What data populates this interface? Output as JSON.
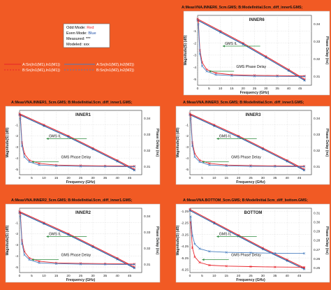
{
  "colors": {
    "background": "#f15a24",
    "odd_mode": "#e8232a",
    "even_mode": "#1f4fa8",
    "il_line": "#1d5aa3",
    "delay_line": "#4a7fc0",
    "annotation": "#2e8b3e"
  },
  "legend_box": {
    "odd": {
      "label": "Odd Mode:",
      "value": "Red"
    },
    "even": {
      "label": "Even Mode:",
      "value": "Blue"
    },
    "measured": {
      "label": "Measured:",
      "value": "***"
    },
    "modeled": {
      "label": "Modeled:",
      "value": "xxx"
    }
  },
  "trace_legend": {
    "a_odd": "A:Sn(In1(M1),In1(M1))",
    "b_odd": "B:Sn(In1(M1),In1(M1))",
    "a_even": "A:Sn(In1(M2),In2(M2))",
    "b_even": "B:Sn(In1(M2),In2(M2))"
  },
  "chart_data": [
    {
      "type": "line",
      "title": "A:MeasVNA.INNER6_5cm.GMS; B:ModelInitial.5cm_diff_inner6.GMS;",
      "inner_label": "INNER6",
      "xlabel": "Frequency (GHz)",
      "ylabel": "Magnitude(S) (dB)",
      "y2label": "Phase Delay (ns)",
      "xlim": [
        0,
        50
      ],
      "ylim": [
        -5.5,
        0.3
      ],
      "y2lim": [
        0.305,
        0.345
      ],
      "xticks": [
        "0",
        "5",
        "10",
        "15",
        "20",
        "25",
        "30",
        "35",
        "40",
        "45"
      ],
      "yticks": [
        "-1",
        "-2",
        "-3",
        "-4",
        "-5"
      ],
      "y2ticks": [
        "0.34",
        "0.33",
        "0.32",
        "0.31"
      ],
      "annotations": [
        "GMS IL",
        "GMS Phase Delay"
      ],
      "series": [
        {
          "role": "il",
          "mode": "odd",
          "x": [
            0,
            10,
            20,
            30,
            40,
            47
          ],
          "y": [
            0,
            -1.0,
            -2.0,
            -3.1,
            -4.2,
            -5.0
          ]
        },
        {
          "role": "il",
          "mode": "even",
          "x": [
            0,
            10,
            20,
            30,
            40,
            47
          ],
          "y": [
            -0.1,
            -1.1,
            -2.1,
            -3.2,
            -4.3,
            -5.1
          ]
        },
        {
          "role": "delay",
          "mode": "odd",
          "x": [
            0.3,
            1,
            2,
            4,
            8,
            15,
            25,
            35,
            47
          ],
          "y": [
            0.342,
            0.325,
            0.318,
            0.314,
            0.312,
            0.311,
            0.3107,
            0.3105,
            0.3103
          ]
        },
        {
          "role": "delay",
          "mode": "even",
          "x": [
            0.3,
            1,
            2,
            4,
            8,
            15,
            25,
            35,
            47
          ],
          "y": [
            0.34,
            0.323,
            0.316,
            0.313,
            0.311,
            0.3105,
            0.3102,
            0.3101,
            0.31
          ]
        }
      ]
    },
    {
      "type": "line",
      "title": "A:MeasVNA.INNER1_5cm.GMS; B:ModelInitial.5cm_diff_inner1.GMS;",
      "inner_label": "INNER1",
      "xlabel": "Frequency (GHz)",
      "ylabel": "Magnitude(S) (dB)",
      "y2label": "Phase Delay (ns)",
      "xlim": [
        0,
        50
      ],
      "ylim": [
        -5.5,
        0.3
      ],
      "y2lim": [
        0.305,
        0.345
      ],
      "xticks": [
        "0",
        "5",
        "10",
        "15",
        "20",
        "25",
        "30",
        "35",
        "40",
        "45"
      ],
      "yticks": [
        "-1",
        "-2",
        "-3",
        "-4",
        "-5"
      ],
      "y2ticks": [
        "0.34",
        "0.33",
        "0.32",
        "0.31"
      ],
      "annotations": [
        "GMS IL",
        "GMS Phase Delay"
      ],
      "series": [
        {
          "role": "il",
          "mode": "odd",
          "x": [
            0,
            10,
            20,
            30,
            40,
            47
          ],
          "y": [
            0,
            -1.0,
            -2.0,
            -3.1,
            -4.2,
            -5.0
          ]
        },
        {
          "role": "il",
          "mode": "even",
          "x": [
            0,
            10,
            20,
            30,
            40,
            47
          ],
          "y": [
            -0.1,
            -1.1,
            -2.1,
            -3.2,
            -4.3,
            -5.1
          ]
        },
        {
          "role": "delay",
          "mode": "odd",
          "x": [
            0.3,
            1,
            2,
            4,
            8,
            15,
            25,
            35,
            47
          ],
          "y": [
            0.342,
            0.325,
            0.318,
            0.314,
            0.312,
            0.311,
            0.3107,
            0.3105,
            0.3103
          ]
        },
        {
          "role": "delay",
          "mode": "even",
          "x": [
            0.3,
            1,
            2,
            4,
            8,
            15,
            25,
            35,
            47
          ],
          "y": [
            0.34,
            0.323,
            0.316,
            0.313,
            0.311,
            0.3105,
            0.3102,
            0.3101,
            0.31
          ]
        }
      ]
    },
    {
      "type": "line",
      "title": "A:MeasVNA.INNER3_5cm.GMS; B:ModelInitial.5cm_diff_inner3.GMS;",
      "inner_label": "INNER3",
      "xlabel": "Frequency (GHz)",
      "ylabel": "Magnitude(S) (dB)",
      "y2label": "Phase Delay (ns)",
      "xlim": [
        0,
        50
      ],
      "ylim": [
        -5.5,
        0.3
      ],
      "y2lim": [
        0.305,
        0.345
      ],
      "xticks": [
        "0",
        "5",
        "10",
        "15",
        "20",
        "25",
        "30",
        "35",
        "40",
        "45"
      ],
      "yticks": [
        "-1",
        "-2",
        "-3",
        "-4",
        "-5"
      ],
      "y2ticks": [
        "0.34",
        "0.33",
        "0.32",
        "0.31"
      ],
      "annotations": [
        "GMS IL",
        "GMS Phase Delay"
      ],
      "series": [
        {
          "role": "il",
          "mode": "odd",
          "x": [
            0,
            10,
            20,
            30,
            40,
            47
          ],
          "y": [
            0,
            -1.0,
            -2.0,
            -3.1,
            -4.2,
            -5.0
          ]
        },
        {
          "role": "il",
          "mode": "even",
          "x": [
            0,
            10,
            20,
            30,
            40,
            47
          ],
          "y": [
            -0.1,
            -1.1,
            -2.1,
            -3.2,
            -4.3,
            -5.1
          ]
        },
        {
          "role": "delay",
          "mode": "odd",
          "x": [
            0.3,
            1,
            2,
            4,
            8,
            15,
            25,
            35,
            47
          ],
          "y": [
            0.342,
            0.325,
            0.318,
            0.314,
            0.312,
            0.311,
            0.3107,
            0.3105,
            0.3103
          ]
        },
        {
          "role": "delay",
          "mode": "even",
          "x": [
            0.3,
            1,
            2,
            4,
            8,
            15,
            25,
            35,
            47
          ],
          "y": [
            0.34,
            0.323,
            0.316,
            0.313,
            0.311,
            0.3105,
            0.3102,
            0.3101,
            0.31
          ]
        }
      ]
    },
    {
      "type": "line",
      "title": "A:MeasVNA.INNER2_5cm.GMS; B:ModelInitial.5cm_diff_inner1.GMS;",
      "inner_label": "INNER2",
      "xlabel": "Frequency (GHz)",
      "ylabel": "Magnitude(S) (dB)",
      "y2label": "Phase Delay (ns)",
      "xlim": [
        0,
        50
      ],
      "ylim": [
        -5.5,
        0.3
      ],
      "y2lim": [
        0.305,
        0.345
      ],
      "xticks": [
        "0",
        "5",
        "10",
        "15",
        "20",
        "25",
        "30",
        "35",
        "40",
        "45"
      ],
      "yticks": [
        "-1",
        "-2",
        "-3",
        "-4",
        "-5"
      ],
      "y2ticks": [
        "0.34",
        "0.33",
        "0.32",
        "0.31"
      ],
      "annotations": [
        "GMS IL",
        "GMS Phase Delay"
      ],
      "series": [
        {
          "role": "il",
          "mode": "odd",
          "x": [
            0,
            10,
            20,
            30,
            40,
            47
          ],
          "y": [
            0,
            -1.0,
            -2.0,
            -3.1,
            -4.2,
            -5.0
          ]
        },
        {
          "role": "il",
          "mode": "even",
          "x": [
            0,
            10,
            20,
            30,
            40,
            47
          ],
          "y": [
            -0.1,
            -1.1,
            -2.1,
            -3.2,
            -4.3,
            -5.1
          ]
        },
        {
          "role": "delay",
          "mode": "odd",
          "x": [
            0.3,
            1,
            2,
            4,
            8,
            15,
            25,
            35,
            47
          ],
          "y": [
            0.342,
            0.325,
            0.318,
            0.314,
            0.312,
            0.311,
            0.3107,
            0.3105,
            0.3103
          ]
        },
        {
          "role": "delay",
          "mode": "even",
          "x": [
            0.3,
            1,
            2,
            4,
            8,
            15,
            25,
            35,
            47
          ],
          "y": [
            0.34,
            0.323,
            0.316,
            0.313,
            0.311,
            0.3105,
            0.3102,
            0.3101,
            0.31
          ]
        }
      ]
    },
    {
      "type": "line",
      "title": "A:MeasVNA.BOTTOM_5cm.GMS; B:ModelInitial.5cm_diff_bottom.GMS;",
      "inner_label": "BOTTOM",
      "xlabel": "Frequency (GHz)",
      "ylabel": "Magnitude(S) (dB)",
      "y2label": "Phase Delay (ns)",
      "xlim": [
        0,
        50
      ],
      "ylim": [
        -6.5,
        -1.0
      ],
      "y2lim": [
        0.245,
        0.315
      ],
      "xticks": [
        "0",
        "5",
        "10",
        "15",
        "20",
        "25",
        "30",
        "35",
        "40",
        "45"
      ],
      "yticks": [
        "-1.25",
        "-2.25",
        "-3.25",
        "-4.25",
        "-5.25",
        "-6.25"
      ],
      "y2ticks": [
        "0.31",
        "0.30",
        "0.29",
        "0.28",
        "0.27",
        "0.26",
        "0.25"
      ],
      "annotations": [
        "GMS IL",
        "GMS Phase Delay"
      ],
      "series": [
        {
          "role": "il",
          "mode": "odd",
          "x": [
            0,
            10,
            20,
            30,
            40,
            47
          ],
          "y": [
            -1.1,
            -2.2,
            -3.3,
            -4.4,
            -5.4,
            -6.1
          ]
        },
        {
          "role": "il",
          "mode": "even",
          "x": [
            0,
            10,
            20,
            30,
            40,
            47
          ],
          "y": [
            -1.2,
            -2.3,
            -3.4,
            -4.5,
            -5.5,
            -6.2
          ]
        },
        {
          "role": "delay",
          "mode": "odd",
          "x": [
            0.3,
            1,
            2,
            4,
            8,
            15,
            25,
            35,
            47
          ],
          "y": [
            0.3,
            0.272,
            0.262,
            0.256,
            0.253,
            0.252,
            0.2515,
            0.251,
            0.2508
          ]
        },
        {
          "role": "delay",
          "mode": "even",
          "x": [
            0.3,
            1,
            2,
            4,
            8,
            15,
            25,
            35,
            47
          ],
          "y": [
            0.306,
            0.285,
            0.276,
            0.271,
            0.268,
            0.267,
            0.2665,
            0.266,
            0.2658
          ]
        }
      ]
    }
  ]
}
